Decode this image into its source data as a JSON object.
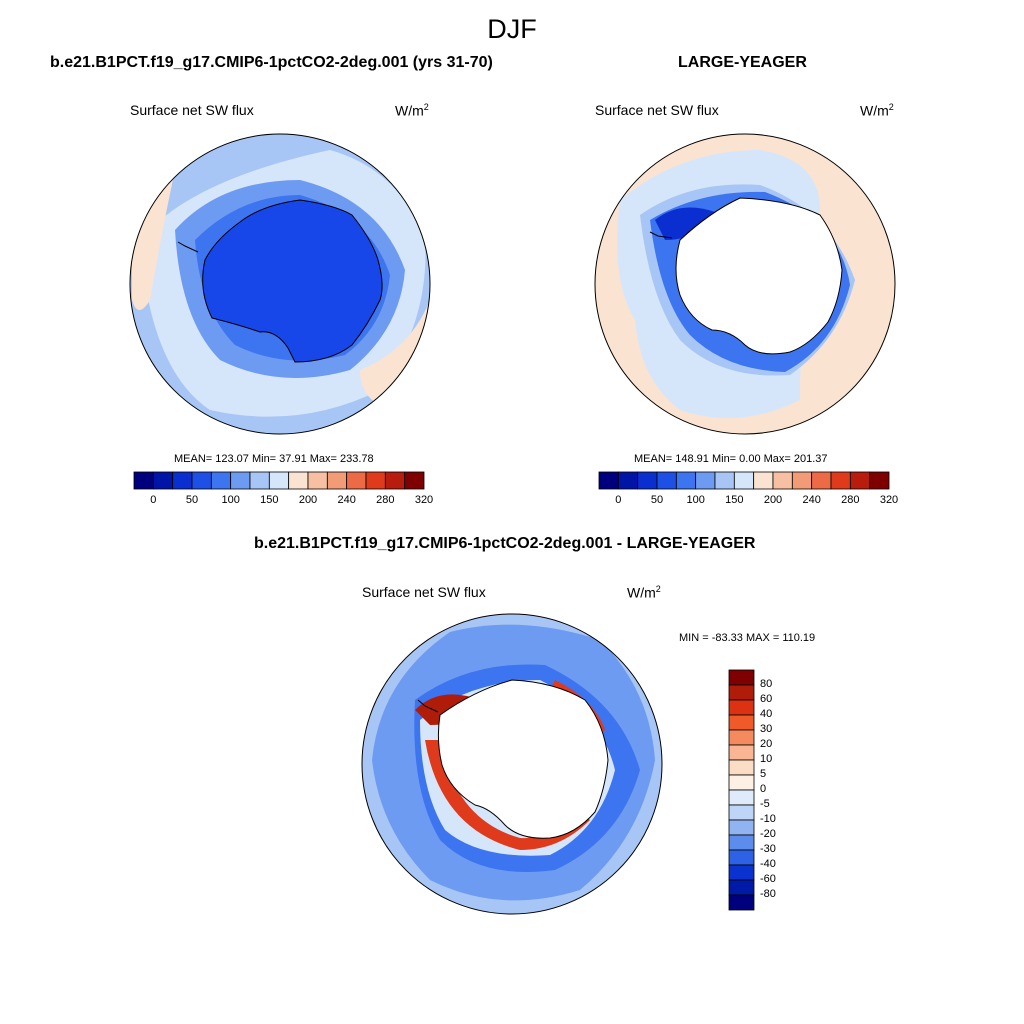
{
  "figure": {
    "title": "DJF"
  },
  "panels": [
    {
      "id": "test",
      "case_title": "b.e21.B1PCT.f19_g17.CMIP6-1pctCO2-2deg.001 (yrs 31-70)",
      "variable": "Surface net SW flux",
      "units_base": "W/m",
      "units_exp": "2",
      "stats_text": "MEAN= 123.07  Min=  37.91  Max= 233.78",
      "stats": {
        "mean": 123.07,
        "min": 37.91,
        "max": 233.78
      },
      "colorbar_ticks": [
        "0",
        "50",
        "100",
        "150",
        "200",
        "240",
        "280",
        "320"
      ]
    },
    {
      "id": "ctrl",
      "case_title": "LARGE-YEAGER",
      "variable": "Surface net SW flux",
      "units_base": "W/m",
      "units_exp": "2",
      "stats_text": "MEAN= 148.91  Min=   0.00  Max= 201.37",
      "stats": {
        "mean": 148.91,
        "min": 0.0,
        "max": 201.37
      },
      "colorbar_ticks": [
        "0",
        "50",
        "100",
        "150",
        "200",
        "240",
        "280",
        "320"
      ]
    },
    {
      "id": "diff",
      "case_title": "b.e21.B1PCT.f19_g17.CMIP6-1pctCO2-2deg.001 - LARGE-YEAGER",
      "variable": "Surface net SW flux",
      "units_base": "W/m",
      "units_exp": "2",
      "stats_text": "MIN = -83.33 MAX = 110.19",
      "stats": {
        "min": -83.33,
        "max": 110.19
      },
      "colorbar_ticks": [
        "80",
        "60",
        "40",
        "30",
        "20",
        "10",
        "5",
        "0",
        "-5",
        "-10",
        "-20",
        "-30",
        "-40",
        "-60",
        "-80"
      ]
    }
  ],
  "colormaps": {
    "abs_colors": [
      "#00007f",
      "#0014a8",
      "#0a2ed0",
      "#1e50e6",
      "#3d74f0",
      "#6e9bf2",
      "#a8c6f5",
      "#d6e6fa",
      "#fbe3d2",
      "#f7c0a2",
      "#f29c77",
      "#ec6a45",
      "#e03a1c",
      "#b81c0c",
      "#7f0000"
    ],
    "diff_colors": [
      "#7f0000",
      "#b01c0a",
      "#dc3211",
      "#f05a28",
      "#f58a5e",
      "#f9b594",
      "#fbdcc4",
      "#fdf0e4",
      "#dfeafb",
      "#bed5f7",
      "#90b4f2",
      "#5c8cec",
      "#2d62e6",
      "#0a32cf",
      "#001aa8",
      "#00007f"
    ]
  },
  "maps": {
    "test_ocean": [
      "#a8c6f5",
      "#d6e6fa",
      "#fbe3d2",
      "#6e9bf2",
      "#3d74f0",
      "#1e50e6"
    ],
    "test_ice": "#1747e8",
    "ctrl_ocean": [
      "#fbe3d2",
      "#d6e6fa",
      "#a8c6f5",
      "#3d74f0",
      "#1e50e6",
      "#0a2ed0"
    ],
    "diff_ocean": [
      "#a8c6f5",
      "#6e9bf2",
      "#3d74f0",
      "#d6e6fa",
      "#fbe3d2",
      "#e03a1c",
      "#b01c0a"
    ]
  }
}
